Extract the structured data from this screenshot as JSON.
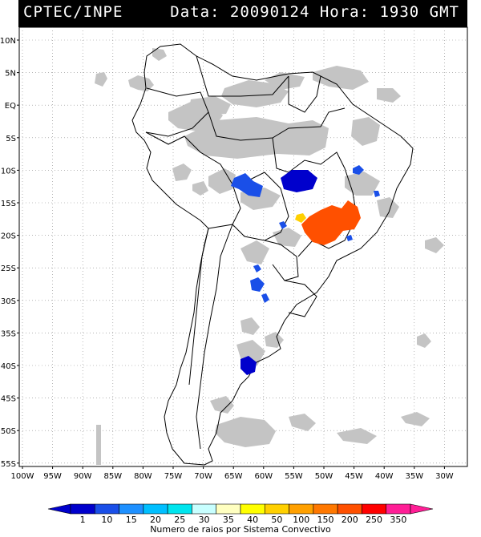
{
  "header": {
    "source": "CPTEC/INPE",
    "datetime": "Data: 20090124 Hora: 1930 GMT"
  },
  "map": {
    "lat_labels": [
      "10N",
      "5N",
      "EQ",
      "5S",
      "10S",
      "15S",
      "20S",
      "25S",
      "30S",
      "35S",
      "40S",
      "45S",
      "50S",
      "55S"
    ],
    "lon_labels": [
      "100W",
      "95W",
      "90W",
      "85W",
      "80W",
      "75W",
      "70W",
      "65W",
      "60W",
      "55W",
      "50W",
      "45W",
      "40W",
      "35W",
      "30W"
    ],
    "lat_range": [
      -56,
      12
    ],
    "lon_range": [
      -100,
      -28
    ],
    "gridlines": true
  },
  "colorbar": {
    "labels": [
      "1",
      "10",
      "15",
      "20",
      "25",
      "30",
      "35",
      "40",
      "50",
      "100",
      "150",
      "200",
      "250",
      "350"
    ],
    "colors": [
      "#0000cc",
      "#1a4fe8",
      "#1e90ff",
      "#00bfff",
      "#00e5ee",
      "#c8ffff",
      "#ffffc0",
      "#ffff00",
      "#ffd000",
      "#ffa000",
      "#ff7800",
      "#ff5000",
      "#ff0000",
      "#ff1e96"
    ],
    "caption": "Numero de raios por Sistema Convectivo"
  },
  "colors": {
    "cloud": "#c0c0c0",
    "cloud_dark": "#a8a8a8",
    "border": "#000000"
  }
}
